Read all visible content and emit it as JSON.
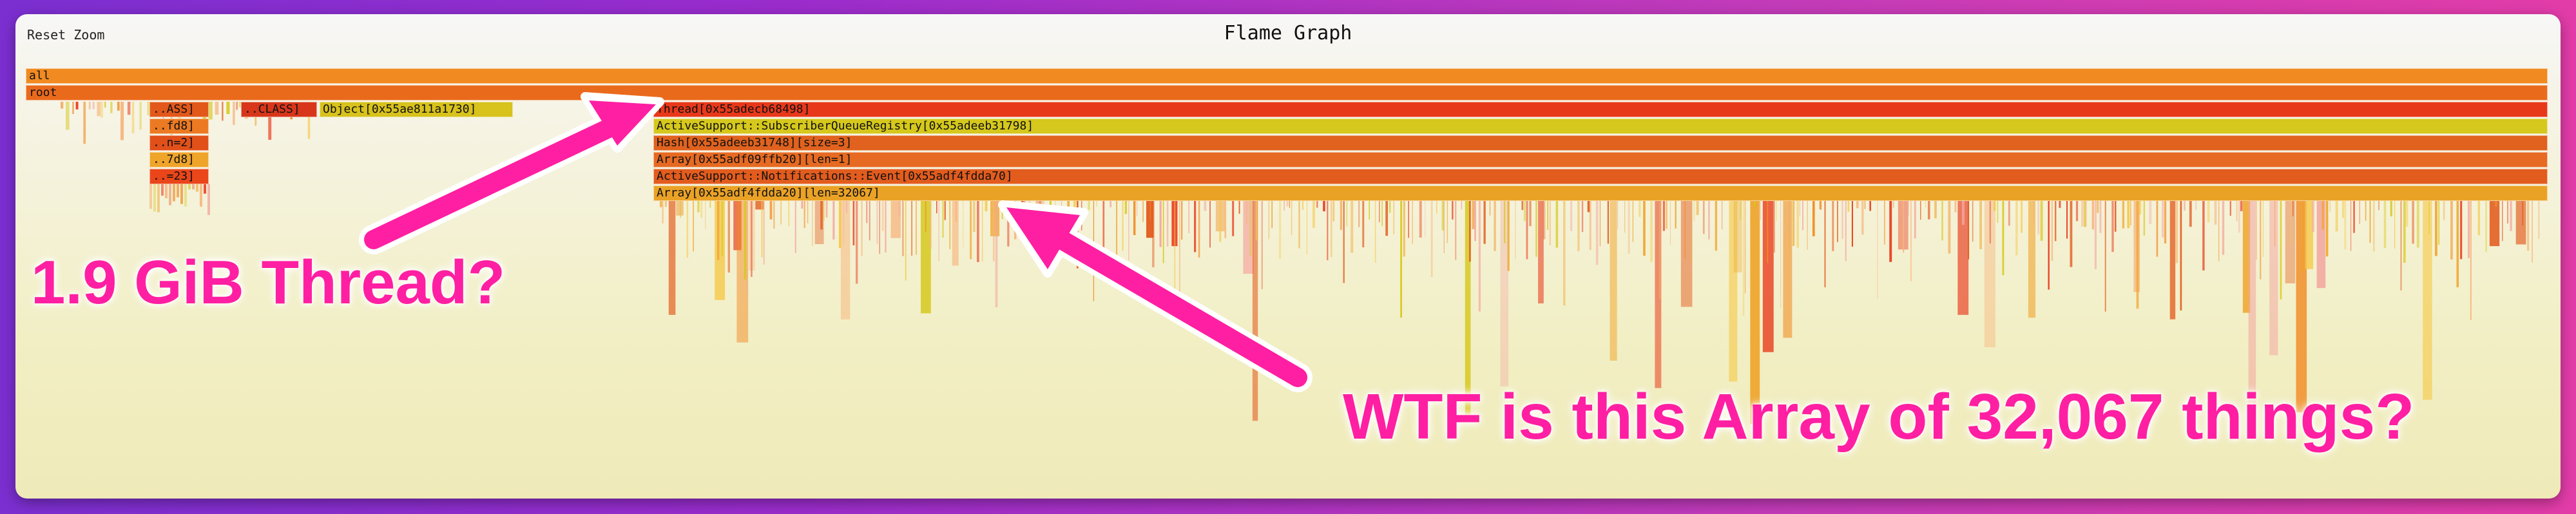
{
  "toolbar": {
    "reset_zoom": "Reset Zoom"
  },
  "title": "Flame Graph",
  "colors": {
    "accent": "#ff1fa2",
    "frame_bg": "#f2efc5"
  },
  "frames": {
    "all": "all",
    "root": "root",
    "left_labels": [
      "..ASS]",
      "..CLASS]",
      "Object[0x55ae811a1730]",
      "..fd8]",
      "..n=2]",
      "..7d8]",
      "..=23]"
    ],
    "thread": "Thread[0x55adecb68498]",
    "registry": "ActiveSupport::SubscriberQueueRegistry[0x55adeeb31798]",
    "hash": "Hash[0x55adeeb31748][size=3]",
    "array_small": "Array[0x55adf09ffb20][len=1]",
    "event": "ActiveSupport::Notifications::Event[0x55adf4fdda70]",
    "array_big": "Array[0x55adf4fdda20][len=32067]"
  },
  "annotations": {
    "thread_note": "1.9 GiB Thread?",
    "array_note": "WTF is this Array of 32,067 things?"
  }
}
